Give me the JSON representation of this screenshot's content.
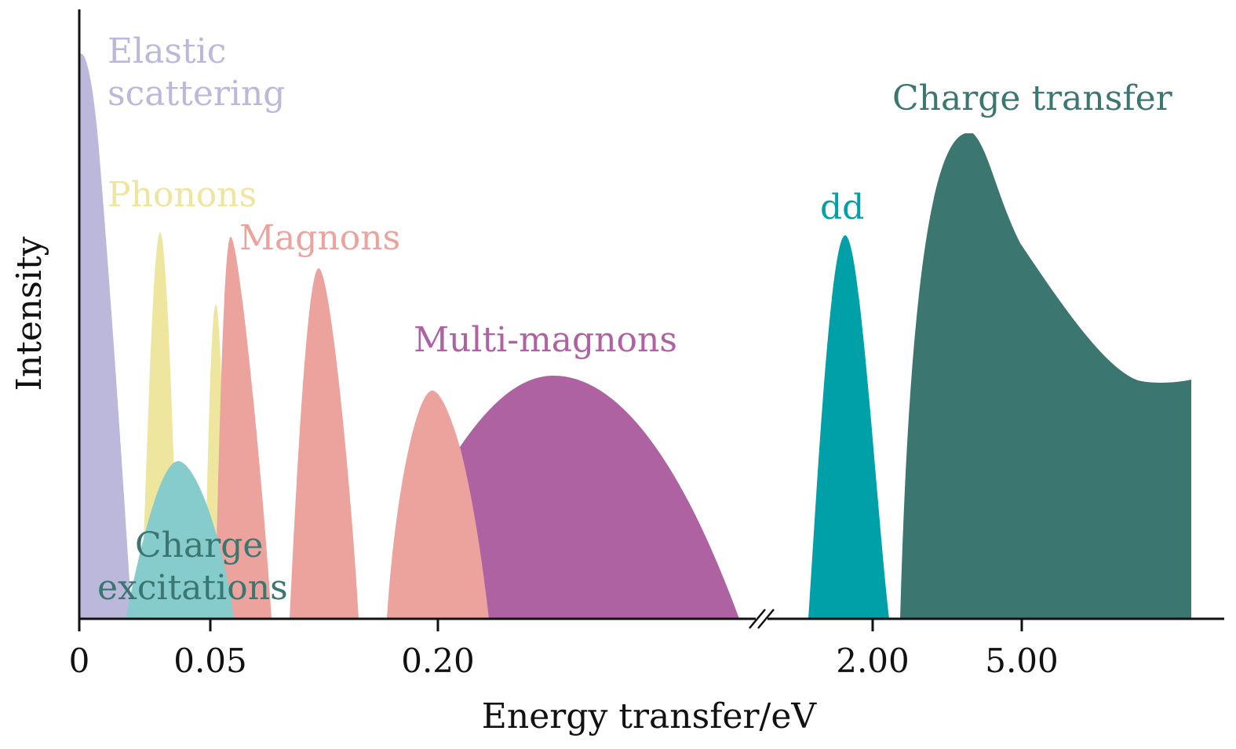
{
  "chart_data": {
    "type": "area",
    "title": "",
    "xlabel": "Energy transfer/eV",
    "ylabel": "Intensity",
    "x_tick_labels": [
      "0",
      "0.05",
      "0.20",
      "2.00",
      "5.00"
    ],
    "axis_break": true,
    "grid": false,
    "series": [
      {
        "name": "Elastic scattering",
        "label_lines": [
          "Elastic",
          "scattering"
        ],
        "color": "#bcb8dc",
        "peak_energy": 0.0,
        "relative_height": 0.93
      },
      {
        "name": "Phonons",
        "label_lines": [
          "Phonons"
        ],
        "color": "#eee59e",
        "peak_energies": [
          0.03,
          0.052
        ],
        "relative_heights": [
          0.63,
          0.51
        ]
      },
      {
        "name": "Magnons",
        "label_lines": [
          "Magnons"
        ],
        "color": "#eda39d",
        "peak_energies": [
          0.058,
          0.1,
          0.2
        ],
        "relative_heights": [
          0.63,
          0.57,
          0.38
        ]
      },
      {
        "name": "Charge excitations",
        "label_lines": [
          "Charge",
          "excitations"
        ],
        "color": "#86cccd",
        "peak_energy": 0.037,
        "relative_height": 0.26
      },
      {
        "name": "Multi-magnons",
        "label_lines": [
          "Multi-magnons"
        ],
        "color": "#af62a2",
        "peak_energy": 0.35,
        "relative_height": 0.4
      },
      {
        "name": "dd",
        "label_lines": [
          "dd"
        ],
        "color": "#00a0a8",
        "peak_energy": 1.8,
        "relative_height": 0.63
      },
      {
        "name": "Charge transfer",
        "label_lines": [
          "Charge transfer"
        ],
        "color": "#3c7670",
        "peak_energy": 4.0,
        "relative_height": 0.8
      }
    ],
    "label_colors": {
      "Elastic scattering": "#bcb8dc",
      "Phonons": "#eee59e",
      "Magnons": "#eda39d",
      "Charge excitations": "#3c7670",
      "Multi-magnons": "#af62a2",
      "dd": "#00a0a8",
      "Charge transfer": "#3c7670"
    }
  }
}
